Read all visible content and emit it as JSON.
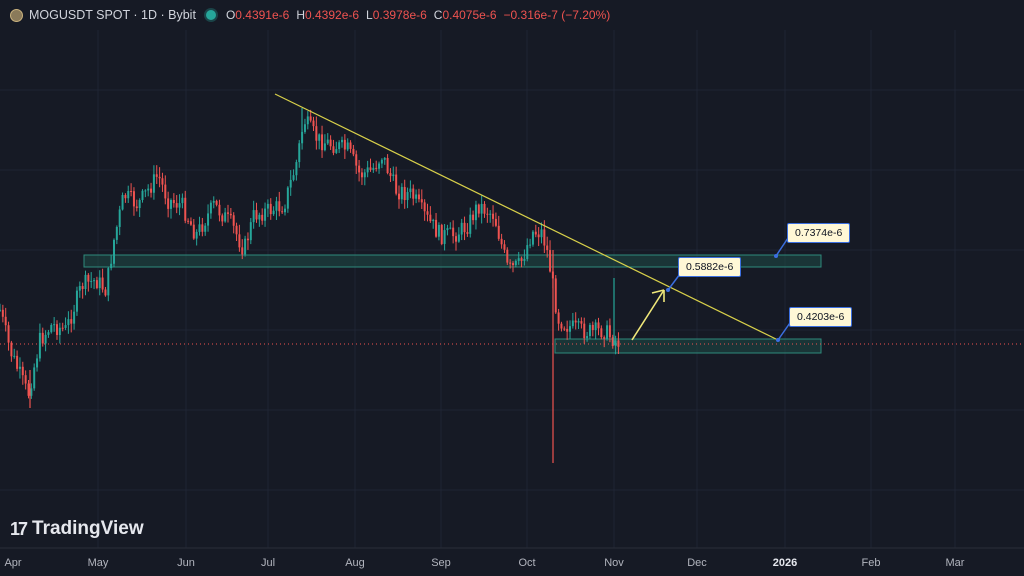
{
  "header": {
    "symbol_title": "MOGUSDT SPOT · 1D · Bybit",
    "ohlc": [
      {
        "key": "O",
        "value": "0.4391e-6"
      },
      {
        "key": "H",
        "value": "0.4392e-6"
      },
      {
        "key": "L",
        "value": "0.3978e-6"
      },
      {
        "key": "C",
        "value": "0.4075e-6"
      },
      {
        "key": "",
        "value": "−0.316e-7 (−7.20%)"
      }
    ]
  },
  "branding": {
    "logo_text": "TradingView"
  },
  "callouts": {
    "resistance_top": "0.7374e-6",
    "target": "0.5882e-6",
    "support_bottom": "0.4203e-6"
  },
  "colors": {
    "background": "#161a25",
    "up": "#26a69a",
    "down": "#ef5350",
    "trendline": "#d8d04a",
    "zone_fill": "#1f4d47",
    "zone_border": "#2f8a7c",
    "arrow": "#f0e87a",
    "callout_border": "#3b6fe0"
  },
  "chart_data": {
    "type": "candlestick",
    "x_axis_labels": [
      "Apr",
      "May",
      "Jun",
      "Jul",
      "Aug",
      "Sep",
      "Oct",
      "Nov",
      "Dec",
      "2026",
      "Feb",
      "Mar"
    ],
    "annotations": {
      "trendline": {
        "from": "2025-07-01",
        "to": "2025-12-20"
      },
      "resistance_zone": {
        "label": "0.7374e-6"
      },
      "support_zone": {
        "label": "0.4203e-6"
      },
      "projection_target": {
        "label": "0.5882e-6"
      }
    },
    "last_close": 0.4075
  }
}
